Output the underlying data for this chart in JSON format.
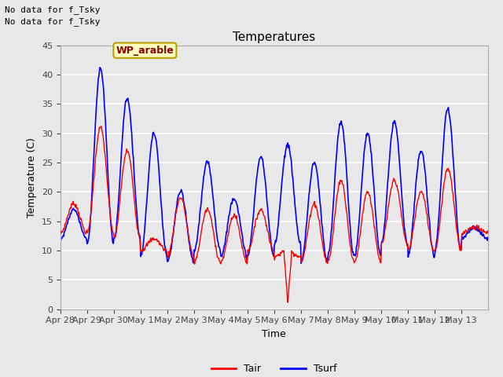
{
  "title": "Temperatures",
  "xlabel": "Time",
  "ylabel": "Temperature (C)",
  "ylim": [
    0,
    45
  ],
  "yticks": [
    0,
    5,
    10,
    15,
    20,
    25,
    30,
    35,
    40,
    45
  ],
  "fig_bg_color": "#e8e8e8",
  "plot_bg_color": "#e8e8e8",
  "grid_color": "white",
  "tair_color": "red",
  "tsurf_color": "blue",
  "text_annotations": [
    "No data for f_Tsky",
    "No data for f_Tsky"
  ],
  "wp_label": "WP_arable",
  "legend_labels": [
    "Tair",
    "Tsurf"
  ],
  "x_tick_labels": [
    "Apr 28",
    "Apr 29",
    "Apr 30",
    "May 1",
    "May 2",
    "May 3",
    "May 4",
    "May 5",
    "May 6",
    "May 7",
    "May 8",
    "May 9",
    "May 10",
    "May 11",
    "May 12",
    "May 13"
  ],
  "n_days": 16,
  "pts_per_day": 48,
  "tair_peaks": [
    18,
    31,
    27,
    12,
    19,
    17,
    16,
    17,
    10,
    18,
    22,
    20,
    22,
    20,
    24,
    14
  ],
  "tair_mins": [
    13,
    13,
    12,
    10,
    9,
    8,
    8,
    10,
    9,
    8,
    8,
    8,
    11,
    10,
    10,
    13
  ],
  "tsurf_peaks": [
    17,
    41,
    36,
    30,
    20,
    25,
    19,
    26,
    28,
    25,
    32,
    30,
    32,
    27,
    34,
    14
  ],
  "tsurf_mins": [
    12,
    11,
    12,
    9,
    8,
    10,
    9,
    9,
    11,
    8,
    9,
    9,
    11,
    9,
    10,
    12
  ]
}
